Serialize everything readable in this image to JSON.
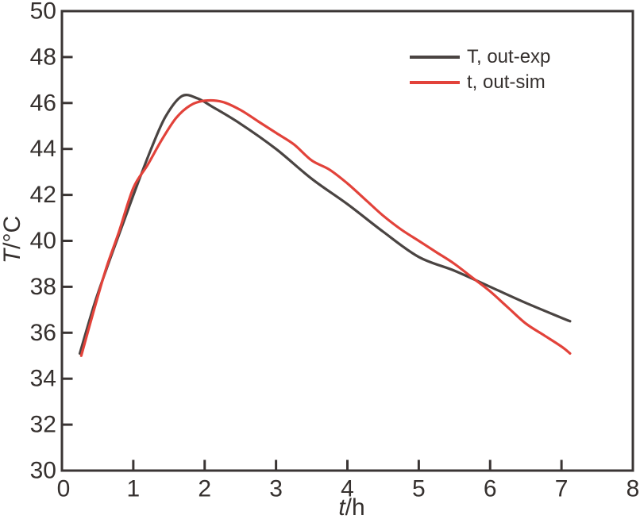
{
  "palette": {
    "background": "#ffffff",
    "frame": "#3a3534",
    "tick_text": "#35302e",
    "exp_line": "#4a4442",
    "sim_line": "#e2423a"
  },
  "chart_data": {
    "type": "line",
    "title": "",
    "xlabel": "t/h",
    "ylabel": "T/°C",
    "xlabel_parts": {
      "var": "t",
      "unit": "/h"
    },
    "ylabel_parts": {
      "var": "T",
      "unit": "/°C"
    },
    "xlim": [
      0,
      8
    ],
    "ylim": [
      30,
      50
    ],
    "xticks": [
      0,
      1,
      2,
      3,
      4,
      5,
      6,
      7,
      8
    ],
    "yticks": [
      30,
      32,
      34,
      36,
      38,
      40,
      42,
      44,
      46,
      48,
      50
    ],
    "grid": false,
    "legend_position": "inside-top-right",
    "series": [
      {
        "name": "T, out-exp",
        "color": "#4a4442",
        "x": [
          0.25,
          0.45,
          0.65,
          0.85,
          1.05,
          1.25,
          1.45,
          1.68,
          1.9,
          2.1,
          2.5,
          3.0,
          3.5,
          4.0,
          4.5,
          5.0,
          5.5,
          6.0,
          6.5,
          7.0,
          7.12
        ],
        "y": [
          35.1,
          37.2,
          39.0,
          40.7,
          42.4,
          44.0,
          45.4,
          46.3,
          46.2,
          45.85,
          45.1,
          44.0,
          42.7,
          41.6,
          40.4,
          39.3,
          38.7,
          38.0,
          37.3,
          36.65,
          36.5
        ]
      },
      {
        "name": "t, out-sim",
        "color": "#e2423a",
        "x": [
          0.27,
          0.45,
          0.62,
          0.8,
          1.0,
          1.2,
          1.4,
          1.6,
          1.8,
          2.0,
          2.25,
          2.5,
          2.75,
          3.0,
          3.25,
          3.5,
          3.75,
          4.0,
          4.25,
          4.5,
          4.75,
          5.0,
          5.25,
          5.5,
          5.75,
          6.0,
          6.25,
          6.5,
          6.75,
          7.0,
          7.12
        ],
        "y": [
          35.0,
          37.0,
          38.8,
          40.4,
          42.3,
          43.3,
          44.4,
          45.35,
          45.9,
          46.1,
          46.05,
          45.7,
          45.2,
          44.7,
          44.2,
          43.5,
          43.1,
          42.5,
          41.8,
          41.1,
          40.5,
          40.0,
          39.5,
          39.0,
          38.4,
          37.8,
          37.1,
          36.4,
          35.9,
          35.4,
          35.1
        ]
      }
    ]
  }
}
